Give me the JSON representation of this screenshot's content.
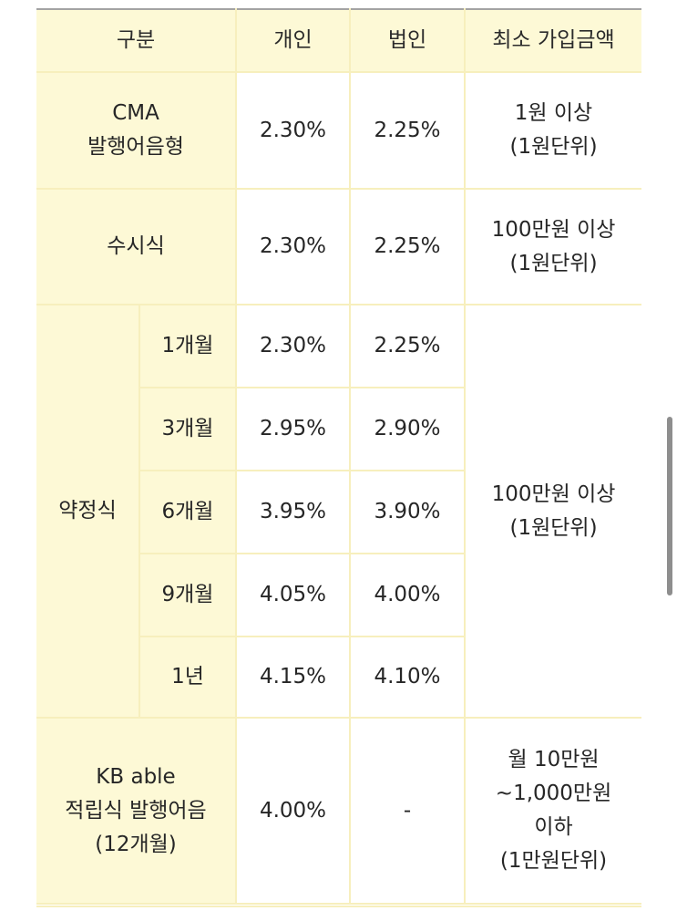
{
  "table": {
    "headers": {
      "category": "구분",
      "individual": "개인",
      "corporate": "법인",
      "minimum": "최소 가입금액"
    },
    "rows": {
      "cma": {
        "label_line1": "CMA",
        "label_line2": "발행어음형",
        "individual": "2.30%",
        "corporate": "2.25%",
        "minimum_line1": "1원 이상",
        "minimum_line2": "(1원단위)"
      },
      "demand": {
        "label": "수시식",
        "individual": "2.30%",
        "corporate": "2.25%",
        "minimum_line1": "100만원 이상",
        "minimum_line2": "(1원단위)"
      },
      "fixed": {
        "label": "약정식",
        "minimum_line1": "100만원 이상",
        "minimum_line2": "(1원단위)",
        "terms": [
          {
            "term": "1개월",
            "individual": "2.30%",
            "corporate": "2.25%"
          },
          {
            "term": "3개월",
            "individual": "2.95%",
            "corporate": "2.90%"
          },
          {
            "term": "6개월",
            "individual": "3.95%",
            "corporate": "3.90%"
          },
          {
            "term": "9개월",
            "individual": "4.05%",
            "corporate": "4.00%"
          },
          {
            "term": "1년",
            "individual": "4.15%",
            "corporate": "4.10%"
          }
        ]
      },
      "kb_able": {
        "label_line1": "KB able",
        "label_line2": "적립식 발행어음",
        "label_line3": "(12개월)",
        "individual": "4.00%",
        "corporate": "-",
        "minimum_line1": "월 10만원",
        "minimum_line2": "~1,000만원",
        "minimum_line3": "이하",
        "minimum_line4": "(1만원단위)"
      }
    }
  },
  "colors": {
    "header_bg": "#fdf9d6",
    "border": "#f7efbd",
    "text": "#262626",
    "scrollbar": "#8e8e8e"
  }
}
